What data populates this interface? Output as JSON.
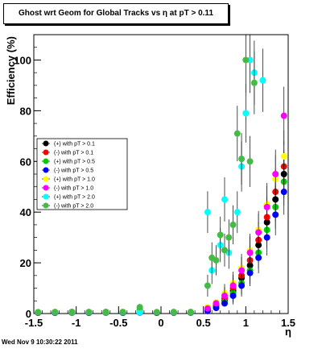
{
  "title": "Ghost wrt Geom for Global Tracks vs   η at pT > 0.11",
  "timestamp": "Wed Nov  9 10:30:22 2011",
  "chart_data": {
    "type": "scatter",
    "title": "Ghost wrt Geom for Global Tracks vs   η at pT > 0.11",
    "xlabel": "η",
    "ylabel": "Efficiency (%)",
    "xlim": [
      -1.5,
      1.5
    ],
    "ylim": [
      0,
      110
    ],
    "xticks": [
      "-1.5",
      "-1",
      "-0.5",
      "0",
      "0.5",
      "1",
      "1.5"
    ],
    "yticks": [
      "0",
      "20",
      "40",
      "60",
      "80",
      "100"
    ],
    "legend_position": "middle-left",
    "series": [
      {
        "name": "(+) with pT > 0.1",
        "color": "#000000",
        "x": [
          -1.45,
          -1.25,
          -1.05,
          -0.85,
          -0.65,
          -0.45,
          -0.25,
          -0.05,
          0.15,
          0.35,
          0.55,
          0.65,
          0.75,
          0.85,
          0.95,
          1.05,
          1.15,
          1.25,
          1.35,
          1.45
        ],
        "y": [
          0.5,
          0.5,
          0.6,
          0.5,
          0.6,
          0.5,
          0.6,
          0.5,
          0.5,
          0.6,
          1.5,
          3,
          5,
          9,
          14,
          19,
          27,
          36,
          45,
          55
        ]
      },
      {
        "name": "(-) with pT > 0.1",
        "color": "#ff0000",
        "x": [
          -1.45,
          -1.25,
          -1.05,
          -0.85,
          -0.65,
          -0.45,
          -0.25,
          -0.05,
          0.15,
          0.35,
          0.55,
          0.65,
          0.75,
          0.85,
          0.95,
          1.05,
          1.15,
          1.25,
          1.35,
          1.45
        ],
        "y": [
          0.4,
          0.5,
          0.5,
          0.4,
          0.5,
          0.4,
          0.5,
          0.4,
          0.5,
          0.5,
          1.8,
          3.5,
          6,
          10,
          15,
          21,
          29,
          38,
          48,
          58
        ]
      },
      {
        "name": "(+) with pT > 0.5",
        "color": "#00cc00",
        "x": [
          -1.45,
          -1.25,
          -1.05,
          -0.85,
          -0.65,
          -0.45,
          -0.25,
          -0.05,
          0.15,
          0.35,
          0.55,
          0.65,
          0.75,
          0.85,
          0.95,
          1.05,
          1.15,
          1.25,
          1.35,
          1.45
        ],
        "y": [
          0.3,
          0.4,
          0.3,
          0.4,
          0.3,
          0.4,
          1.5,
          0.3,
          0.4,
          0.3,
          1.2,
          2.5,
          4.5,
          8,
          12,
          17,
          24,
          33,
          42,
          52
        ]
      },
      {
        "name": "(-) with pT > 0.5",
        "color": "#0000ff",
        "x": [
          -1.45,
          -1.25,
          -1.05,
          -0.85,
          -0.65,
          -0.45,
          -0.25,
          -0.05,
          0.15,
          0.35,
          0.55,
          0.65,
          0.75,
          0.85,
          0.95,
          1.05,
          1.15,
          1.25,
          1.35,
          1.45
        ],
        "y": [
          0.3,
          0.3,
          0.4,
          0.3,
          0.4,
          0.3,
          0.4,
          0.3,
          0.3,
          0.4,
          1.0,
          2.2,
          4,
          7,
          11,
          16,
          22,
          30,
          39,
          48
        ]
      },
      {
        "name": "(+) with pT > 1.0",
        "color": "#ffff00",
        "x": [
          -1.45,
          -1.25,
          -1.05,
          -0.85,
          -0.65,
          -0.45,
          -0.25,
          -0.05,
          0.15,
          0.35,
          0.55,
          0.65,
          0.75,
          0.85,
          0.95,
          1.05,
          1.15,
          1.25,
          1.35,
          1.45
        ],
        "y": [
          0.5,
          0.6,
          0.5,
          0.6,
          0.5,
          0.6,
          0.5,
          0.6,
          0.5,
          0.6,
          2.5,
          4.5,
          8,
          12,
          18,
          25,
          33,
          43,
          53,
          62
        ]
      },
      {
        "name": "(-) with pT > 1.0",
        "color": "#ff00ff",
        "x": [
          -1.45,
          -1.25,
          -1.05,
          -0.85,
          -0.65,
          -0.45,
          -0.25,
          -0.05,
          0.15,
          0.35,
          0.55,
          0.65,
          0.75,
          0.85,
          0.95,
          1.05,
          1.15,
          1.25,
          1.35,
          1.45
        ],
        "y": [
          0.4,
          0.5,
          0.4,
          0.5,
          0.4,
          0.5,
          0.4,
          0.5,
          0.4,
          0.5,
          2.0,
          4,
          7,
          11,
          17,
          24,
          32,
          42,
          55,
          78
        ]
      },
      {
        "name": "(+) with pT > 2.0",
        "color": "#00ffff",
        "x": [
          -1.45,
          -1.25,
          -1.05,
          -0.85,
          -0.65,
          -0.45,
          -0.25,
          -0.05,
          0.15,
          0.35,
          0.55,
          0.6,
          0.7,
          0.75,
          0.8,
          0.9,
          0.95,
          1.0,
          1.05,
          1.1,
          1.2
        ],
        "y": [
          0.5,
          0.5,
          0.5,
          0.5,
          0.5,
          0.5,
          0.5,
          0.5,
          0.5,
          0.5,
          40,
          17,
          27,
          45,
          24,
          40,
          58,
          79,
          100,
          95,
          92
        ]
      },
      {
        "name": "(-) with pT > 2.0",
        "color": "#44bb44",
        "x": [
          -1.45,
          -1.25,
          -1.05,
          -0.85,
          -0.65,
          -0.45,
          -0.25,
          -0.05,
          0.15,
          0.35,
          0.55,
          0.6,
          0.65,
          0.7,
          0.75,
          0.8,
          0.85,
          0.9,
          0.95,
          1.0,
          1.05,
          1.1
        ],
        "y": [
          0.5,
          0.6,
          0.5,
          0.6,
          0.5,
          0.6,
          2.5,
          0.5,
          0.6,
          0.5,
          11,
          22,
          21,
          31,
          25,
          30,
          35,
          71,
          61,
          100,
          60,
          91
        ]
      }
    ]
  }
}
